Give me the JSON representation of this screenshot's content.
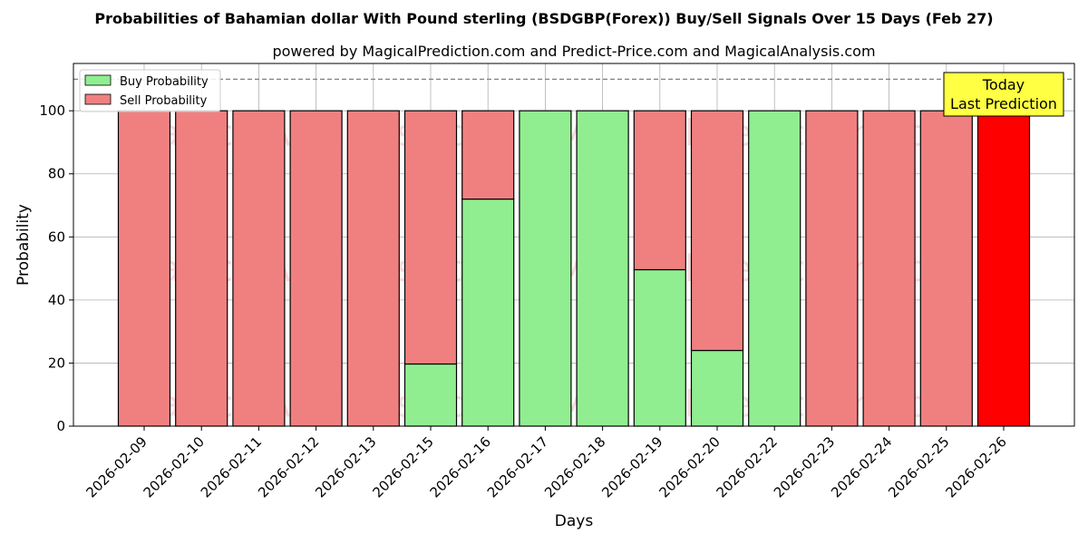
{
  "chart_data": {
    "type": "bar",
    "title": "Probabilities of Bahamian dollar With Pound sterling (BSDGBP(Forex)) Buy/Sell Signals Over 15 Days (Feb 27)",
    "subtitle": "powered by MagicalPrediction.com and Predict-Price.com and MagicalAnalysis.com",
    "xlabel": "Days",
    "ylabel": "Probability",
    "ylim": [
      0,
      115
    ],
    "yticks": [
      0,
      20,
      40,
      60,
      80,
      100
    ],
    "reference_line": 110,
    "grid": true,
    "legend_position": "top-left",
    "categories": [
      "2026-02-09",
      "2026-02-10",
      "2026-02-11",
      "2026-02-12",
      "2026-02-13",
      "2026-02-15",
      "2026-02-16",
      "2026-02-17",
      "2026-02-18",
      "2026-02-19",
      "2026-02-20",
      "2026-02-22",
      "2026-02-23",
      "2026-02-24",
      "2026-02-25",
      "2026-02-26"
    ],
    "series": [
      {
        "name": "Buy Probability",
        "color": "#90ee90",
        "values": [
          0,
          0,
          0,
          0,
          0,
          19.7,
          72,
          100,
          100,
          49.6,
          24,
          100,
          0,
          0,
          0,
          0
        ]
      },
      {
        "name": "Sell Probability",
        "color": "#f08080",
        "values": [
          100,
          100,
          100,
          100,
          100,
          80.3,
          28,
          0,
          0,
          50.4,
          76,
          0,
          100,
          100,
          100,
          100
        ]
      }
    ],
    "highlight": {
      "index": 15,
      "color": "#ff0000"
    },
    "annotation": {
      "line1": "Today",
      "line2": "Last Prediction",
      "color": "#ffff44"
    },
    "watermarks": [
      "MagicalAnalysis.com",
      "MagicalPrediction.com"
    ]
  }
}
